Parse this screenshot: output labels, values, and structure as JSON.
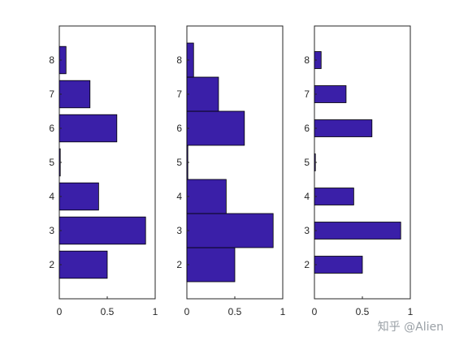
{
  "chart_data": [
    {
      "type": "bar",
      "orientation": "horizontal",
      "categories": [
        "2",
        "3",
        "4",
        "5",
        "6",
        "7",
        "8"
      ],
      "values": [
        0.5,
        0.9,
        0.41,
        0.01,
        0.6,
        0.32,
        0.07
      ],
      "xlim": [
        0,
        1
      ],
      "ylim": [
        1,
        9
      ],
      "xticks": [
        "0",
        "0.5",
        "1"
      ],
      "bar_width": 0.8,
      "color": "#3a1fa8",
      "edge_color": "#000000",
      "grid": false
    },
    {
      "type": "bar",
      "orientation": "horizontal",
      "categories": [
        "2",
        "3",
        "4",
        "5",
        "6",
        "7",
        "8"
      ],
      "values": [
        0.5,
        0.9,
        0.41,
        0.01,
        0.6,
        0.33,
        0.07
      ],
      "xlim": [
        0,
        1
      ],
      "ylim": [
        1,
        9
      ],
      "xticks": [
        "0",
        "0.5",
        "1"
      ],
      "bar_width": 1.0,
      "color": "#3a1fa8",
      "edge_color": "#000000",
      "grid": false
    },
    {
      "type": "bar",
      "orientation": "horizontal",
      "categories": [
        "2",
        "3",
        "4",
        "5",
        "6",
        "7",
        "8"
      ],
      "values": [
        0.5,
        0.9,
        0.41,
        0.01,
        0.6,
        0.33,
        0.07
      ],
      "xlim": [
        0,
        1
      ],
      "ylim": [
        1,
        9
      ],
      "xticks": [
        "0",
        "0.5",
        "1"
      ],
      "bar_width": 0.5,
      "color": "#3a1fa8",
      "edge_color": "#000000",
      "grid": false
    }
  ],
  "watermark": "知乎 @Alien"
}
